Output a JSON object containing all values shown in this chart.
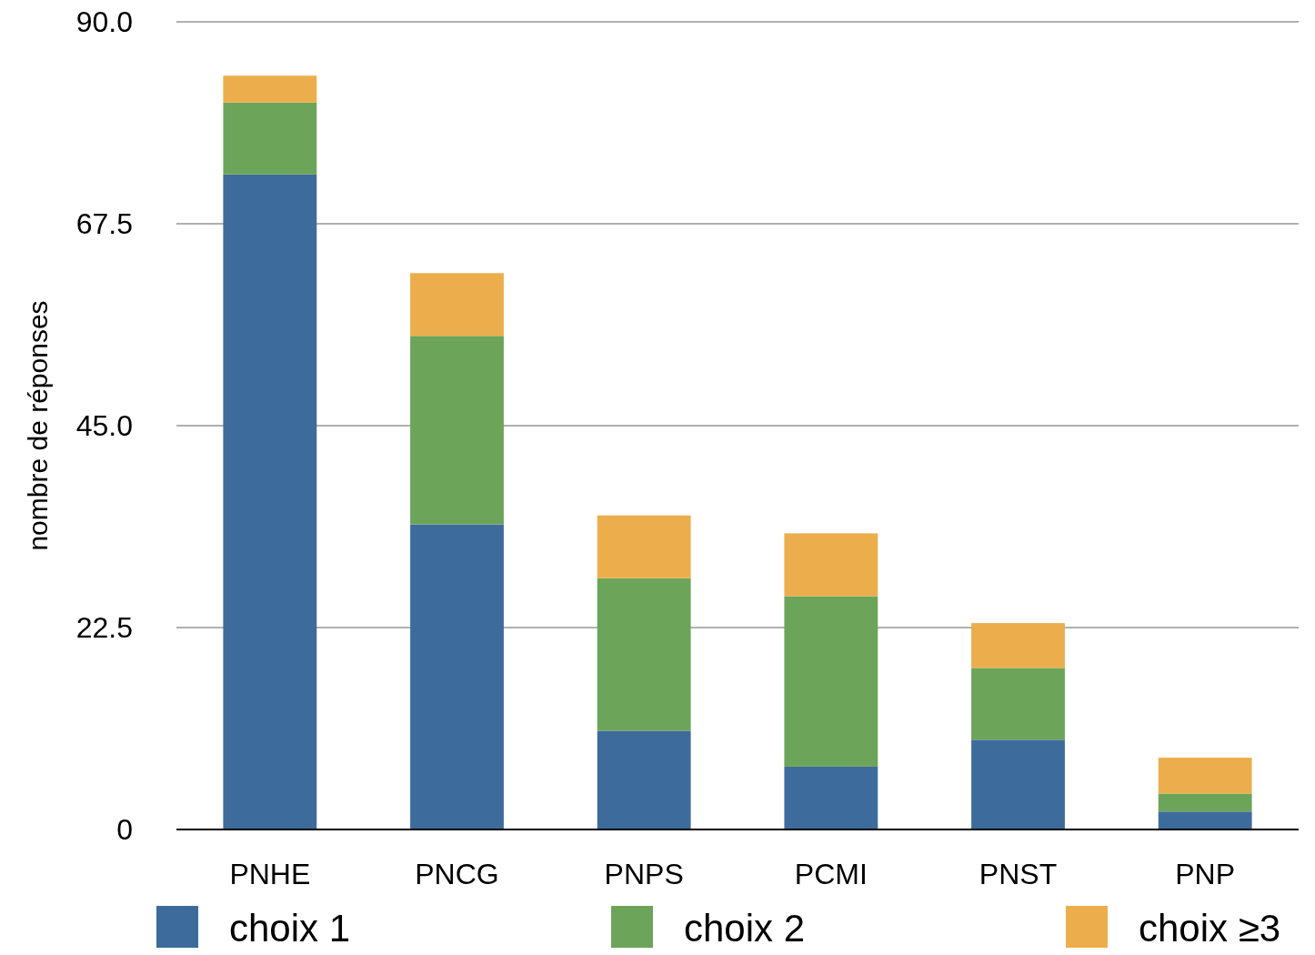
{
  "chart_data": {
    "type": "bar",
    "stacked": true,
    "ylabel": "nombre de réponses",
    "categories": [
      "PNHE",
      "PNCG",
      "PNPS",
      "PCMI",
      "PNST",
      "PNP"
    ],
    "series": [
      {
        "name": "choix 1",
        "color": "#3d6c9c",
        "values": [
          73,
          34,
          11,
          7,
          10,
          2
        ]
      },
      {
        "name": "choix 2",
        "color": "#6ca459",
        "values": [
          8,
          21,
          17,
          19,
          8,
          2
        ]
      },
      {
        "name": "choix ≥3",
        "color": "#ecae4c",
        "values": [
          3,
          7,
          7,
          7,
          5,
          4
        ]
      }
    ],
    "ylim": [
      0,
      90
    ],
    "yticks": [
      0,
      {
        "value": 22.5,
        "label": "22.5"
      },
      {
        "value": 45,
        "label": "45.0"
      },
      {
        "value": 67.5,
        "label": "67.5"
      },
      {
        "value": 90,
        "label": "90.0"
      }
    ],
    "grid": "y",
    "legend": "bottom"
  }
}
